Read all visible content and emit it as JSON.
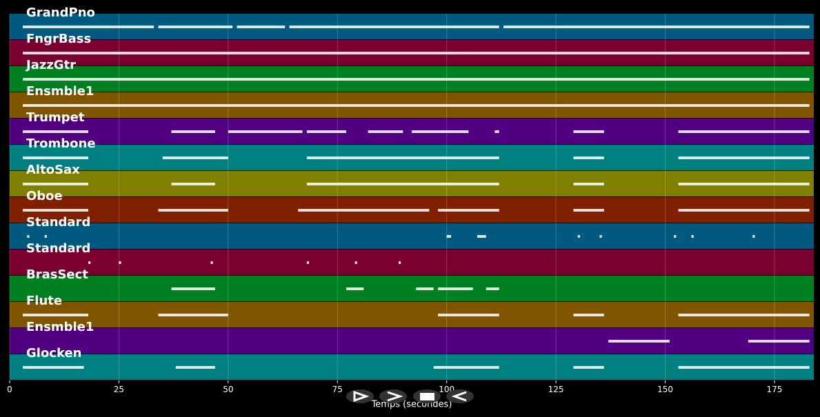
{
  "chart_data": {
    "type": "pianoroll",
    "xlabel": "Temps (secondes)",
    "xlim": [
      0,
      184
    ],
    "xticks": [
      0,
      25,
      50,
      75,
      100,
      125,
      150,
      175
    ],
    "grid": true,
    "tracks": [
      {
        "name": "GrandPno",
        "color": "#005a80",
        "segments": [
          [
            3,
            33
          ],
          [
            34,
            51
          ],
          [
            52,
            63
          ],
          [
            64,
            112
          ],
          [
            113,
            183
          ]
        ]
      },
      {
        "name": "FngrBass",
        "color": "#7a0030",
        "segments": [
          [
            3,
            183
          ]
        ]
      },
      {
        "name": "JazzGtr",
        "color": "#008020",
        "segments": [
          [
            3,
            183
          ]
        ]
      },
      {
        "name": "Ensmble1",
        "color": "#805500",
        "segments": [
          [
            3,
            183
          ]
        ]
      },
      {
        "name": "Trumpet",
        "color": "#500080",
        "segments": [
          [
            3,
            18
          ],
          [
            37,
            47
          ],
          [
            50,
            67
          ],
          [
            68,
            77
          ],
          [
            82,
            90
          ],
          [
            92,
            105
          ],
          [
            111,
            112
          ],
          [
            129,
            136
          ],
          [
            153,
            183
          ]
        ]
      },
      {
        "name": "Trombone",
        "color": "#008080",
        "segments": [
          [
            3,
            18
          ],
          [
            35,
            50
          ],
          [
            68,
            112
          ],
          [
            129,
            136
          ],
          [
            153,
            183
          ]
        ]
      },
      {
        "name": "AltoSax",
        "color": "#808000",
        "segments": [
          [
            3,
            18
          ],
          [
            37,
            47
          ],
          [
            68,
            112
          ],
          [
            129,
            136
          ],
          [
            153,
            183
          ]
        ]
      },
      {
        "name": "Oboe",
        "color": "#802000",
        "segments": [
          [
            3,
            18
          ],
          [
            34,
            50
          ],
          [
            66,
            96
          ],
          [
            98,
            112
          ],
          [
            129,
            136
          ],
          [
            153,
            183
          ]
        ]
      },
      {
        "name": "Standard",
        "color": "#005a80",
        "segments": [
          [
            4,
            4.5
          ],
          [
            8,
            8.5
          ],
          [
            100,
            101
          ],
          [
            107,
            109
          ],
          [
            130,
            130.5
          ],
          [
            135,
            135.5
          ],
          [
            152,
            152.5
          ],
          [
            156,
            156.5
          ],
          [
            170,
            170.5
          ]
        ]
      },
      {
        "name": "Standard",
        "color": "#7a0030",
        "segments": [
          [
            18,
            18.5
          ],
          [
            25,
            25.5
          ],
          [
            46,
            46.5
          ],
          [
            68,
            68.5
          ],
          [
            79,
            79.5
          ],
          [
            89,
            89.5
          ]
        ]
      },
      {
        "name": "BrasSect",
        "color": "#008020",
        "segments": [
          [
            37,
            47
          ],
          [
            77,
            81
          ],
          [
            93,
            97
          ],
          [
            98,
            106
          ],
          [
            109,
            112
          ]
        ]
      },
      {
        "name": "Flute",
        "color": "#805500",
        "segments": [
          [
            3,
            18
          ],
          [
            34,
            50
          ],
          [
            98,
            112
          ],
          [
            129,
            136
          ],
          [
            153,
            183
          ]
        ]
      },
      {
        "name": "Ensmble1",
        "color": "#500080",
        "segments": [
          [
            137,
            151
          ],
          [
            169,
            183
          ]
        ]
      },
      {
        "name": "Glocken",
        "color": "#008080",
        "segments": [
          [
            3,
            17
          ],
          [
            38,
            47
          ],
          [
            97,
            112
          ],
          [
            129,
            136
          ],
          [
            153,
            183
          ]
        ]
      }
    ]
  }
}
